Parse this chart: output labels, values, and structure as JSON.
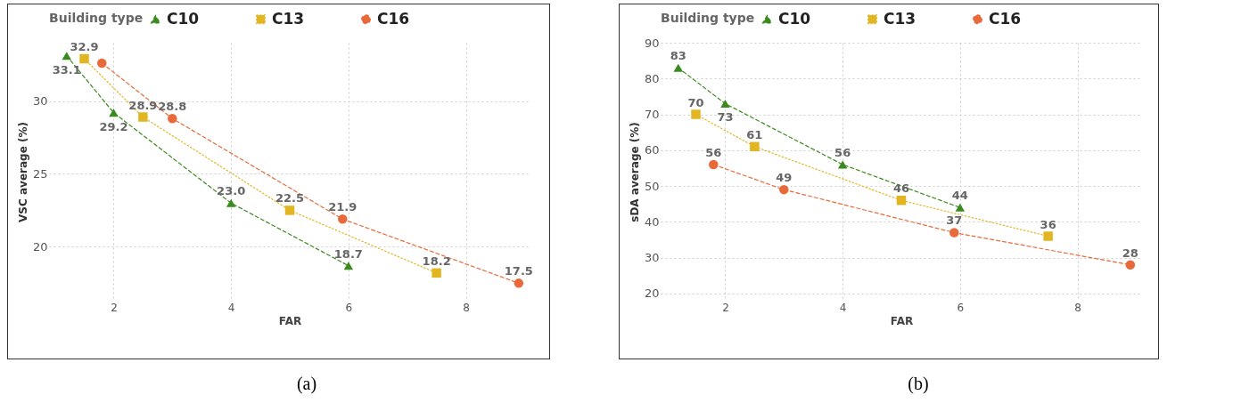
{
  "chart_data": [
    {
      "type": "line",
      "xlabel": "FAR",
      "ylabel": "VSC average (%)",
      "legend_title": "Building type",
      "legend": "top",
      "grid": true,
      "xlim": [
        0.9,
        9.1
      ],
      "xticks": [
        2,
        4,
        6,
        8
      ],
      "ylim": [
        16.3,
        34
      ],
      "yticks": [
        20,
        25,
        30
      ],
      "annotations": [
        "(a)"
      ],
      "series": [
        {
          "name": "C10",
          "color": "#3a8a1e",
          "marker": "triangle",
          "line_style": "dashed",
          "x": [
            1.2,
            2,
            4,
            6
          ],
          "values": [
            33.1,
            29.2,
            23.0,
            18.7
          ],
          "value_labels": [
            "33.1",
            "29.2",
            "23.0",
            "18.7"
          ]
        },
        {
          "name": "C13",
          "color": "#e2b622",
          "marker": "square",
          "line_style": "dotted",
          "x": [
            1.5,
            2.5,
            5,
            7.5
          ],
          "values": [
            32.9,
            28.9,
            22.5,
            18.2
          ],
          "value_labels": [
            "32.9",
            "28.9",
            "22.5",
            "18.2"
          ]
        },
        {
          "name": "C16",
          "color": "#e86a3a",
          "marker": "circle",
          "line_style": "dashed",
          "x": [
            1.8,
            3,
            5.9,
            8.9
          ],
          "values": [
            32.6,
            28.8,
            21.9,
            17.5
          ],
          "value_labels": [
            null,
            "28.8",
            "21.9",
            "17.5"
          ]
        }
      ]
    },
    {
      "type": "line",
      "xlabel": "FAR",
      "ylabel": "sDA average (%)",
      "legend_title": "Building type",
      "legend": "top",
      "grid": true,
      "xlim": [
        0.9,
        9.1
      ],
      "xticks": [
        2,
        4,
        6,
        8
      ],
      "ylim": [
        18,
        90
      ],
      "yticks": [
        20,
        30,
        40,
        50,
        60,
        70,
        80,
        90
      ],
      "annotations": [
        "(b)"
      ],
      "data_labels": true,
      "series": [
        {
          "name": "C10",
          "color": "#3a8a1e",
          "marker": "triangle",
          "line_style": "dashed",
          "x": [
            1.2,
            2,
            4,
            6
          ],
          "values": [
            83,
            73,
            56,
            44
          ]
        },
        {
          "name": "C13",
          "color": "#e2b622",
          "marker": "square",
          "line_style": "dotted",
          "x": [
            1.5,
            2.5,
            5,
            7.5
          ],
          "values": [
            70,
            61,
            46,
            36
          ]
        },
        {
          "name": "C16",
          "color": "#e86a3a",
          "marker": "circle",
          "line_style": "dashed",
          "x": [
            1.8,
            3,
            5.9,
            8.9
          ],
          "values": [
            56,
            49,
            37,
            28
          ]
        }
      ]
    }
  ]
}
